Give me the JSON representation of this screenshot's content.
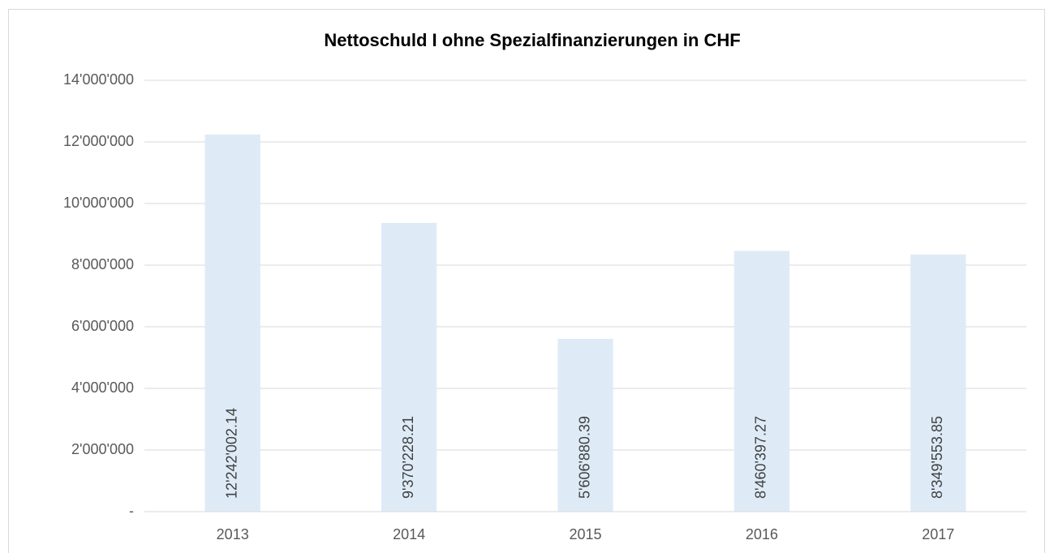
{
  "chart_data": {
    "type": "bar",
    "title": "Nettoschuld I ohne Spezialfinanzierungen in CHF",
    "categories": [
      "2013",
      "2014",
      "2015",
      "2016",
      "2017"
    ],
    "values": [
      12242002.14,
      9370228.21,
      5606880.39,
      8460397.27,
      8349553.85
    ],
    "value_labels": [
      "12'242'002.14",
      "9'370'228.21",
      "5'606'880.39",
      "8'460'397.27",
      "8'349'553.85"
    ],
    "color": "#deebf7",
    "ylim": [
      0,
      14000000
    ],
    "yticks": [
      {
        "value": 0,
        "label": "-"
      },
      {
        "value": 2000000,
        "label": "2'000'000"
      },
      {
        "value": 4000000,
        "label": "4'000'000"
      },
      {
        "value": 6000000,
        "label": "6'000'000"
      },
      {
        "value": 8000000,
        "label": "8'000'000"
      },
      {
        "value": 10000000,
        "label": "10'000'000"
      },
      {
        "value": 12000000,
        "label": "12'000'000"
      },
      {
        "value": 14000000,
        "label": "14'000'000"
      }
    ],
    "grid": true
  }
}
